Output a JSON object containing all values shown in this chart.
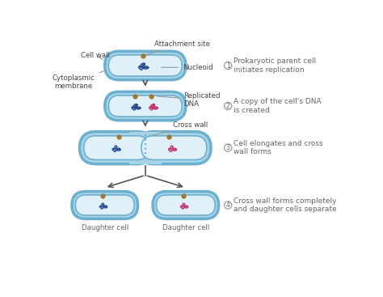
{
  "bg_color": "#ffffff",
  "cell_outer_color": "#a8d4e8",
  "cell_inner_color": "#dff0f8",
  "cell_border_color": "#6cb0d0",
  "dna_blue_color": "#2a4a90",
  "dna_pink_color": "#c0356a",
  "attachment_color": "#a07830",
  "arrow_color": "#555555",
  "text_color": "#666666",
  "label_color": "#444444",
  "step1_label": "Prokaryotic parent cell\ninitiates replication",
  "step2_label": "A copy of the cell's DNA\nis created",
  "step3_label": "Cell elongates and cross\nwall forms",
  "step4_label": "Cross wall forms completely\nand daughter cells separate",
  "label_cell_wall": "Cell wall",
  "label_cytoplasmic": "Cytoplasmic\nmembrane",
  "label_attachment": "Attachment site",
  "label_nucleoid": "Nucleoid",
  "label_replicated": "Replicated\nDNA",
  "label_cross_wall": "Cross wall",
  "label_daughter": "Daughter cell"
}
